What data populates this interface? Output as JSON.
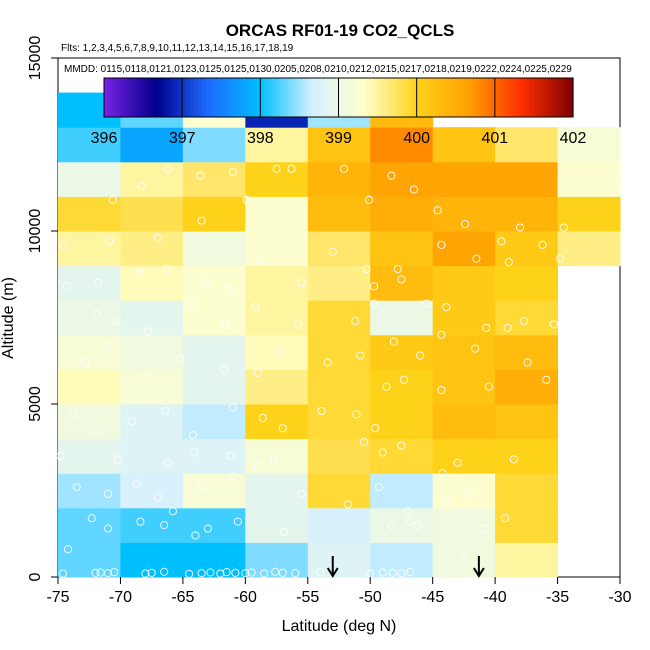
{
  "chart_data": {
    "type": "heatmap",
    "title": "ORCAS RF01-19 CO2_QCLS",
    "flights_text": "Flts: 1,2,3,4,5,6,7,8,9,10,11,12,13,14,15,16,17,18,19",
    "mmdd_text": "MMDD: 0115,0118,0121,0123,0125,0125,0130,0205,0208,0210,0212,0215,0217,0218,0219,0222,0224,0225,0229",
    "xlabel": "Latitude (deg N)",
    "ylabel": "Altitude (m)",
    "xlim": [
      -75,
      -30
    ],
    "ylim": [
      0,
      15000
    ],
    "x_ticks": [
      -75,
      -70,
      -65,
      -60,
      -55,
      -50,
      -45,
      -40,
      -35,
      -30
    ],
    "x_tick_labels": [
      "-75",
      "-70",
      "-65",
      "-60",
      "-55",
      "-50",
      "-45",
      "-40",
      "-35",
      "-30"
    ],
    "y_ticks": [
      0,
      5000,
      10000,
      15000
    ],
    "y_tick_labels": [
      "0",
      "5000",
      "10000",
      "15000"
    ],
    "colorbar": {
      "min": 396,
      "max": 402,
      "ticks": [
        396,
        397,
        398,
        399,
        400,
        401,
        402
      ],
      "tick_labels": [
        "396",
        "397",
        "398",
        "399",
        "400",
        "401",
        "402"
      ],
      "colors": [
        "#7b22e6",
        "#00008c",
        "#1e6bff",
        "#00bfff",
        "#d6f0ff",
        "#ffffcc",
        "#ffd21a",
        "#ffa000",
        "#ff3000",
        "#800000"
      ]
    },
    "lat_bins": [
      -75,
      -70,
      -65,
      -60,
      -55,
      -50,
      -45,
      -40,
      -35,
      -30
    ],
    "alt_bin_size": 1000,
    "grid": [
      [
        398.3,
        398.0,
        398.0,
        398.4,
        398.8,
        398.6,
        399.1,
        399.5,
        null
      ],
      [
        398.3,
        398.2,
        398.2,
        398.9,
        398.7,
        399.0,
        399.1,
        399.9,
        null
      ],
      [
        398.5,
        398.7,
        399.2,
        398.9,
        399.9,
        398.6,
        399.3,
        399.9,
        null
      ],
      [
        398.9,
        398.8,
        398.8,
        399.2,
        399.8,
        399.9,
        400.0,
        400.0,
        null
      ],
      [
        399.1,
        398.8,
        398.6,
        400.0,
        399.9,
        400.0,
        400.3,
        400.2,
        null
      ],
      [
        399.4,
        399.2,
        398.9,
        399.6,
        399.9,
        400.0,
        400.2,
        400.5,
        null
      ],
      [
        399.2,
        399.1,
        398.9,
        399.4,
        399.9,
        400.1,
        400.2,
        400.3,
        null
      ],
      [
        399.0,
        398.9,
        399.3,
        399.5,
        399.9,
        399.0,
        400.1,
        399.9,
        null
      ],
      [
        398.9,
        399.4,
        399.3,
        399.5,
        399.6,
        400.3,
        400.1,
        400.0,
        null
      ],
      [
        399.5,
        399.6,
        399.1,
        399.3,
        399.7,
        400.2,
        400.6,
        400.1,
        399.6
      ],
      [
        399.9,
        399.8,
        400.0,
        399.3,
        400.3,
        400.5,
        400.4,
        400.4,
        400.0
      ],
      [
        399.0,
        399.5,
        399.7,
        400.0,
        400.4,
        400.6,
        400.6,
        400.6,
        399.3
      ],
      [
        398.2,
        397.8,
        398.4,
        399.5,
        400.2,
        400.8,
        400.2,
        399.7,
        399.2
      ],
      [
        398.0,
        398.3,
        399.3,
        396.9,
        398.5,
        400.3,
        null,
        null,
        null
      ]
    ],
    "sample_points": [
      [
        -74.6,
        100
      ],
      [
        -72.0,
        120
      ],
      [
        -71.6,
        130
      ],
      [
        -71.0,
        110
      ],
      [
        -70.5,
        140
      ],
      [
        -68.0,
        100
      ],
      [
        -67.5,
        120
      ],
      [
        -66.5,
        150
      ],
      [
        -64.5,
        90
      ],
      [
        -63.5,
        110
      ],
      [
        -62.8,
        130
      ],
      [
        -62.0,
        100
      ],
      [
        -61.5,
        140
      ],
      [
        -60.8,
        120
      ],
      [
        -60.0,
        110
      ],
      [
        -59.5,
        130
      ],
      [
        -58.5,
        100
      ],
      [
        -57.6,
        150
      ],
      [
        -57.0,
        120
      ],
      [
        -56.0,
        110
      ],
      [
        -54.0,
        140
      ],
      [
        -50.0,
        100
      ],
      [
        -49.0,
        130
      ],
      [
        -48.2,
        120
      ],
      [
        -47.5,
        110
      ],
      [
        -46.8,
        140
      ],
      [
        -74.2,
        800
      ],
      [
        -72.3,
        1700
      ],
      [
        -71.0,
        1400
      ],
      [
        -68.4,
        1600
      ],
      [
        -66.5,
        1500
      ],
      [
        -65.8,
        1900
      ],
      [
        -64.0,
        1200
      ],
      [
        -63.0,
        1400
      ],
      [
        -60.6,
        1600
      ],
      [
        -56.9,
        1300
      ],
      [
        -48.3,
        1500
      ],
      [
        -46.8,
        1600
      ],
      [
        -46.2,
        1500
      ],
      [
        -42.5,
        600
      ],
      [
        -40.8,
        1400
      ],
      [
        -39.2,
        1700
      ],
      [
        -73.5,
        2600
      ],
      [
        -71.0,
        2400
      ],
      [
        -68.7,
        2700
      ],
      [
        -67.0,
        2300
      ],
      [
        -63.5,
        2600
      ],
      [
        -61.0,
        2900
      ],
      [
        -55.5,
        2400
      ],
      [
        -51.8,
        2100
      ],
      [
        -49.3,
        2600
      ],
      [
        -47.0,
        1900
      ],
      [
        -44.0,
        2200
      ],
      [
        -42.0,
        2400
      ],
      [
        -74.8,
        3500
      ],
      [
        -70.2,
        3400
      ],
      [
        -66.2,
        3300
      ],
      [
        -64.1,
        3600
      ],
      [
        -61.2,
        3500
      ],
      [
        -59.0,
        3200
      ],
      [
        -57.7,
        3400
      ],
      [
        -50.5,
        3900
      ],
      [
        -49.0,
        3600
      ],
      [
        -47.5,
        3800
      ],
      [
        -44.2,
        3000
      ],
      [
        -43.0,
        3300
      ],
      [
        -38.5,
        3400
      ],
      [
        -73.8,
        4700
      ],
      [
        -72.0,
        4200
      ],
      [
        -69.1,
        4500
      ],
      [
        -66.4,
        4800
      ],
      [
        -64.2,
        4100
      ],
      [
        -61.0,
        4900
      ],
      [
        -58.6,
        4600
      ],
      [
        -57.0,
        4300
      ],
      [
        -53.9,
        4800
      ],
      [
        -51.1,
        4700
      ],
      [
        -49.6,
        4300
      ],
      [
        -48.7,
        5500
      ],
      [
        -47.3,
        5700
      ],
      [
        -44.3,
        5400
      ],
      [
        -40.5,
        5500
      ],
      [
        -35.9,
        5700
      ],
      [
        -72.8,
        6200
      ],
      [
        -70.9,
        6700
      ],
      [
        -67.9,
        5800
      ],
      [
        -65.2,
        6300
      ],
      [
        -61.7,
        6000
      ],
      [
        -59.0,
        5900
      ],
      [
        -57.2,
        6500
      ],
      [
        -53.4,
        6200
      ],
      [
        -50.8,
        6400
      ],
      [
        -48.1,
        6800
      ],
      [
        -46.0,
        6400
      ],
      [
        -44.3,
        7000
      ],
      [
        -41.6,
        6600
      ],
      [
        -37.4,
        6200
      ],
      [
        -71.9,
        7600
      ],
      [
        -70.3,
        7400
      ],
      [
        -67.8,
        7100
      ],
      [
        -64.3,
        7900
      ],
      [
        -61.6,
        7300
      ],
      [
        -59.2,
        7800
      ],
      [
        -55.8,
        7300
      ],
      [
        -51.2,
        7400
      ],
      [
        -49.7,
        7900
      ],
      [
        -47.5,
        8600
      ],
      [
        -45.5,
        7900
      ],
      [
        -43.9,
        7800
      ],
      [
        -40.7,
        7200
      ],
      [
        -39.0,
        7200
      ],
      [
        -37.7,
        7400
      ],
      [
        -35.3,
        7300
      ],
      [
        -74.3,
        8400
      ],
      [
        -71.8,
        8500
      ],
      [
        -68.5,
        8800
      ],
      [
        -66.3,
        8900
      ],
      [
        -63.2,
        8500
      ],
      [
        -61.3,
        8300
      ],
      [
        -58.8,
        9100
      ],
      [
        -55.5,
        8500
      ],
      [
        -53.0,
        9400
      ],
      [
        -50.3,
        8900
      ],
      [
        -49.7,
        8400
      ],
      [
        -47.8,
        8900
      ],
      [
        -44.3,
        9600
      ],
      [
        -41.5,
        9200
      ],
      [
        -39.5,
        9700
      ],
      [
        -38.9,
        9100
      ],
      [
        -36.2,
        9600
      ],
      [
        -34.8,
        9200
      ],
      [
        -74.6,
        9600
      ],
      [
        -70.9,
        9700
      ],
      [
        -67.0,
        9800
      ],
      [
        -66.2,
        11800
      ],
      [
        -63.5,
        10300
      ],
      [
        -59.9,
        10900
      ],
      [
        -57.5,
        11800
      ],
      [
        -56.3,
        11800
      ],
      [
        -52.1,
        11800
      ],
      [
        -50.1,
        10900
      ],
      [
        -48.3,
        11600
      ],
      [
        -46.5,
        11200
      ],
      [
        -44.6,
        10600
      ],
      [
        -42.4,
        10200
      ],
      [
        -38.0,
        10100
      ],
      [
        -34.5,
        10100
      ],
      [
        -70.6,
        10900
      ],
      [
        -68.3,
        11300
      ],
      [
        -63.6,
        11600
      ],
      [
        -61.0,
        11700
      ]
    ],
    "arrows_at_latitude": [
      -53,
      -41.3
    ]
  }
}
